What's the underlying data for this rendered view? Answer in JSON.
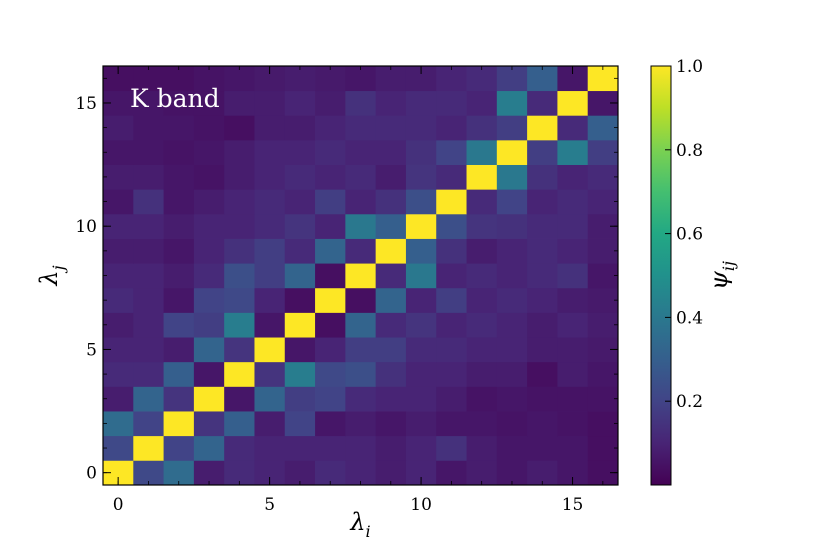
{
  "chart_data": {
    "type": "heatmap",
    "annotation": "K band",
    "xlabel": "λ_i",
    "ylabel": "λ_j",
    "colorbar_label": "ψ_ij",
    "xticks": [
      0,
      5,
      10,
      15
    ],
    "yticks": [
      0,
      5,
      10,
      15
    ],
    "cbar_ticks": [
      0.2,
      0.4,
      0.6,
      0.8,
      1.0
    ],
    "xlim": [
      -0.5,
      16.5
    ],
    "ylim": [
      -0.5,
      16.5
    ],
    "vmin": 0.0,
    "vmax": 1.0,
    "colormap": "viridis",
    "x": [
      0,
      1,
      2,
      3,
      4,
      5,
      6,
      7,
      8,
      9,
      10,
      11,
      12,
      13,
      14,
      15,
      16
    ],
    "y": [
      0,
      1,
      2,
      3,
      4,
      5,
      6,
      7,
      8,
      9,
      10,
      11,
      12,
      13,
      14,
      15,
      16
    ],
    "z": [
      [
        1.0,
        0.22,
        0.35,
        0.08,
        0.12,
        0.1,
        0.08,
        0.12,
        0.1,
        0.08,
        0.1,
        0.06,
        0.08,
        0.06,
        0.08,
        0.06,
        0.04
      ],
      [
        0.22,
        1.0,
        0.2,
        0.32,
        0.12,
        0.1,
        0.1,
        0.1,
        0.1,
        0.08,
        0.1,
        0.14,
        0.08,
        0.06,
        0.06,
        0.06,
        0.04
      ],
      [
        0.35,
        0.2,
        1.0,
        0.15,
        0.3,
        0.08,
        0.2,
        0.06,
        0.08,
        0.06,
        0.08,
        0.06,
        0.06,
        0.05,
        0.06,
        0.05,
        0.04
      ],
      [
        0.08,
        0.32,
        0.15,
        1.0,
        0.06,
        0.32,
        0.18,
        0.2,
        0.12,
        0.1,
        0.1,
        0.08,
        0.05,
        0.06,
        0.05,
        0.05,
        0.05
      ],
      [
        0.12,
        0.12,
        0.3,
        0.06,
        1.0,
        0.15,
        0.42,
        0.22,
        0.24,
        0.14,
        0.1,
        0.1,
        0.08,
        0.08,
        0.04,
        0.08,
        0.06
      ],
      [
        0.1,
        0.1,
        0.08,
        0.32,
        0.15,
        1.0,
        0.06,
        0.1,
        0.18,
        0.18,
        0.12,
        0.12,
        0.1,
        0.1,
        0.08,
        0.08,
        0.07
      ],
      [
        0.08,
        0.1,
        0.2,
        0.18,
        0.42,
        0.06,
        1.0,
        0.04,
        0.32,
        0.12,
        0.15,
        0.1,
        0.12,
        0.1,
        0.08,
        0.1,
        0.08
      ],
      [
        0.12,
        0.1,
        0.06,
        0.2,
        0.22,
        0.1,
        0.04,
        1.0,
        0.04,
        0.32,
        0.1,
        0.18,
        0.1,
        0.12,
        0.1,
        0.08,
        0.07
      ],
      [
        0.1,
        0.1,
        0.08,
        0.12,
        0.24,
        0.18,
        0.32,
        0.04,
        1.0,
        0.12,
        0.4,
        0.1,
        0.12,
        0.1,
        0.12,
        0.14,
        0.06
      ],
      [
        0.08,
        0.08,
        0.06,
        0.1,
        0.14,
        0.18,
        0.12,
        0.32,
        0.12,
        1.0,
        0.3,
        0.14,
        0.08,
        0.1,
        0.12,
        0.1,
        0.08
      ],
      [
        0.1,
        0.1,
        0.08,
        0.1,
        0.1,
        0.12,
        0.15,
        0.1,
        0.4,
        0.3,
        1.0,
        0.24,
        0.15,
        0.14,
        0.12,
        0.12,
        0.08
      ],
      [
        0.06,
        0.14,
        0.06,
        0.08,
        0.1,
        0.12,
        0.1,
        0.18,
        0.1,
        0.14,
        0.24,
        1.0,
        0.12,
        0.2,
        0.1,
        0.12,
        0.1
      ],
      [
        0.08,
        0.08,
        0.06,
        0.05,
        0.08,
        0.1,
        0.12,
        0.1,
        0.12,
        0.08,
        0.15,
        0.12,
        1.0,
        0.4,
        0.14,
        0.1,
        0.12
      ],
      [
        0.06,
        0.06,
        0.05,
        0.06,
        0.08,
        0.1,
        0.1,
        0.12,
        0.1,
        0.1,
        0.14,
        0.2,
        0.4,
        1.0,
        0.18,
        0.42,
        0.18
      ],
      [
        0.08,
        0.06,
        0.06,
        0.05,
        0.04,
        0.08,
        0.08,
        0.1,
        0.12,
        0.12,
        0.12,
        0.1,
        0.14,
        0.18,
        1.0,
        0.12,
        0.3
      ],
      [
        0.06,
        0.06,
        0.05,
        0.05,
        0.08,
        0.08,
        0.1,
        0.08,
        0.14,
        0.1,
        0.12,
        0.12,
        0.1,
        0.42,
        0.12,
        1.0,
        0.06
      ],
      [
        0.04,
        0.04,
        0.04,
        0.05,
        0.06,
        0.07,
        0.08,
        0.07,
        0.06,
        0.08,
        0.08,
        0.1,
        0.12,
        0.18,
        0.3,
        0.06,
        1.0
      ]
    ]
  }
}
